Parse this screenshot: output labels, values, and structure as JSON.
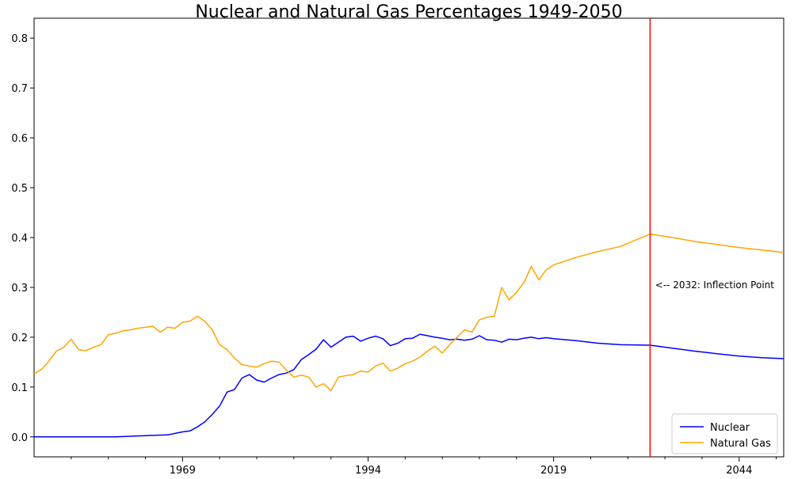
{
  "chart_data": {
    "type": "line",
    "title": "Nuclear and Natural Gas Percentages 1949-2050",
    "xlabel": "",
    "ylabel": "",
    "xlim": [
      1949,
      2050
    ],
    "ylim": [
      -0.04,
      0.84
    ],
    "x_ticks": [
      1969,
      1994,
      2019,
      2044
    ],
    "y_ticks": [
      0.0,
      0.1,
      0.2,
      0.3,
      0.4,
      0.5,
      0.6,
      0.7,
      0.8
    ],
    "y_tick_labels": [
      "0.0",
      "0.1",
      "0.2",
      "0.3",
      "0.4",
      "0.5",
      "0.6",
      "0.7",
      "0.8"
    ],
    "x_tick_labels": [
      "1969",
      "1994",
      "2019",
      "2044"
    ],
    "grid": false,
    "legend_position": "bottom-right",
    "colors": {
      "nuclear": "#0000ff",
      "natural_gas": "#ffa500",
      "inflection": "#ff0000"
    },
    "vline": {
      "x": 2032,
      "color": "#ff0000"
    },
    "annotation": {
      "text": "<-- 2032: Inflection Point",
      "x": 2033,
      "y": 0.305
    },
    "series": [
      {
        "name": "Nuclear",
        "color": "#0000ff",
        "points": [
          [
            1949,
            0.0
          ],
          [
            1955,
            0.0
          ],
          [
            1960,
            0.0
          ],
          [
            1963,
            0.002
          ],
          [
            1965,
            0.003
          ],
          [
            1967,
            0.004
          ],
          [
            1968,
            0.007
          ],
          [
            1969,
            0.01
          ],
          [
            1970,
            0.012
          ],
          [
            1971,
            0.02
          ],
          [
            1972,
            0.03
          ],
          [
            1973,
            0.045
          ],
          [
            1974,
            0.062
          ],
          [
            1975,
            0.09
          ],
          [
            1976,
            0.095
          ],
          [
            1977,
            0.118
          ],
          [
            1978,
            0.125
          ],
          [
            1979,
            0.114
          ],
          [
            1980,
            0.11
          ],
          [
            1981,
            0.118
          ],
          [
            1982,
            0.125
          ],
          [
            1983,
            0.128
          ],
          [
            1984,
            0.135
          ],
          [
            1985,
            0.155
          ],
          [
            1986,
            0.165
          ],
          [
            1987,
            0.176
          ],
          [
            1988,
            0.195
          ],
          [
            1989,
            0.18
          ],
          [
            1990,
            0.19
          ],
          [
            1991,
            0.2
          ],
          [
            1992,
            0.202
          ],
          [
            1993,
            0.192
          ],
          [
            1994,
            0.198
          ],
          [
            1995,
            0.202
          ],
          [
            1996,
            0.197
          ],
          [
            1997,
            0.183
          ],
          [
            1998,
            0.188
          ],
          [
            1999,
            0.197
          ],
          [
            2000,
            0.198
          ],
          [
            2001,
            0.206
          ],
          [
            2002,
            0.203
          ],
          [
            2003,
            0.2
          ],
          [
            2004,
            0.198
          ],
          [
            2005,
            0.195
          ],
          [
            2006,
            0.196
          ],
          [
            2007,
            0.194
          ],
          [
            2008,
            0.196
          ],
          [
            2009,
            0.203
          ],
          [
            2010,
            0.195
          ],
          [
            2011,
            0.194
          ],
          [
            2012,
            0.19
          ],
          [
            2013,
            0.196
          ],
          [
            2014,
            0.195
          ],
          [
            2015,
            0.198
          ],
          [
            2016,
            0.2
          ],
          [
            2017,
            0.197
          ],
          [
            2018,
            0.199
          ],
          [
            2019,
            0.197
          ],
          [
            2022,
            0.193
          ],
          [
            2025,
            0.188
          ],
          [
            2028,
            0.185
          ],
          [
            2032,
            0.184
          ],
          [
            2035,
            0.178
          ],
          [
            2038,
            0.172
          ],
          [
            2041,
            0.167
          ],
          [
            2044,
            0.162
          ],
          [
            2047,
            0.159
          ],
          [
            2050,
            0.157
          ]
        ]
      },
      {
        "name": "Natural Gas",
        "color": "#ffa500",
        "points": [
          [
            1949,
            0.127
          ],
          [
            1950,
            0.135
          ],
          [
            1951,
            0.152
          ],
          [
            1952,
            0.172
          ],
          [
            1953,
            0.18
          ],
          [
            1954,
            0.196
          ],
          [
            1955,
            0.175
          ],
          [
            1956,
            0.173
          ],
          [
            1957,
            0.18
          ],
          [
            1958,
            0.185
          ],
          [
            1959,
            0.205
          ],
          [
            1960,
            0.208
          ],
          [
            1961,
            0.213
          ],
          [
            1962,
            0.215
          ],
          [
            1963,
            0.218
          ],
          [
            1964,
            0.22
          ],
          [
            1965,
            0.222
          ],
          [
            1966,
            0.21
          ],
          [
            1967,
            0.22
          ],
          [
            1968,
            0.218
          ],
          [
            1969,
            0.23
          ],
          [
            1970,
            0.232
          ],
          [
            1971,
            0.242
          ],
          [
            1972,
            0.232
          ],
          [
            1973,
            0.215
          ],
          [
            1974,
            0.185
          ],
          [
            1975,
            0.175
          ],
          [
            1976,
            0.158
          ],
          [
            1977,
            0.145
          ],
          [
            1978,
            0.142
          ],
          [
            1979,
            0.14
          ],
          [
            1980,
            0.147
          ],
          [
            1981,
            0.152
          ],
          [
            1982,
            0.15
          ],
          [
            1983,
            0.134
          ],
          [
            1984,
            0.12
          ],
          [
            1985,
            0.124
          ],
          [
            1986,
            0.12
          ],
          [
            1987,
            0.1
          ],
          [
            1988,
            0.107
          ],
          [
            1989,
            0.093
          ],
          [
            1990,
            0.12
          ],
          [
            1991,
            0.123
          ],
          [
            1992,
            0.125
          ],
          [
            1993,
            0.132
          ],
          [
            1994,
            0.13
          ],
          [
            1995,
            0.142
          ],
          [
            1996,
            0.148
          ],
          [
            1997,
            0.132
          ],
          [
            1998,
            0.138
          ],
          [
            1999,
            0.147
          ],
          [
            2000,
            0.152
          ],
          [
            2001,
            0.16
          ],
          [
            2002,
            0.172
          ],
          [
            2003,
            0.182
          ],
          [
            2004,
            0.168
          ],
          [
            2005,
            0.185
          ],
          [
            2006,
            0.2
          ],
          [
            2007,
            0.215
          ],
          [
            2008,
            0.21
          ],
          [
            2009,
            0.235
          ],
          [
            2010,
            0.24
          ],
          [
            2011,
            0.242
          ],
          [
            2012,
            0.3
          ],
          [
            2013,
            0.275
          ],
          [
            2014,
            0.29
          ],
          [
            2015,
            0.31
          ],
          [
            2016,
            0.342
          ],
          [
            2017,
            0.315
          ],
          [
            2018,
            0.335
          ],
          [
            2019,
            0.345
          ],
          [
            2022,
            0.36
          ],
          [
            2025,
            0.372
          ],
          [
            2028,
            0.382
          ],
          [
            2032,
            0.407
          ],
          [
            2035,
            0.4
          ],
          [
            2038,
            0.392
          ],
          [
            2041,
            0.386
          ],
          [
            2044,
            0.38
          ],
          [
            2047,
            0.375
          ],
          [
            2050,
            0.37
          ]
        ]
      }
    ]
  }
}
